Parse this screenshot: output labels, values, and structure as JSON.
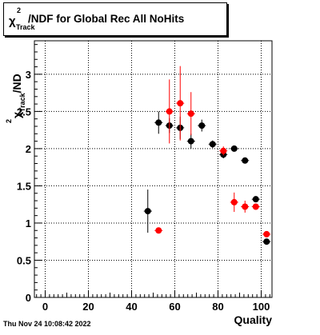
{
  "title": {
    "symbol": "χ",
    "superscript": "2",
    "subscript": "Track",
    "text": "/NDF for Global Rec All NoHits"
  },
  "timestamp": "Thu Nov 24 10:08:42 2022",
  "chart_data": {
    "type": "scatter",
    "xlabel": "Quality",
    "ylabel": {
      "symbol": "χ",
      "superscript": "2",
      "subscript": "Track",
      "suffix": "/ND"
    },
    "xlim": [
      -5,
      105
    ],
    "ylim": [
      0,
      3.45
    ],
    "xticks": [
      0,
      20,
      40,
      60,
      80,
      100
    ],
    "yticks": [
      0,
      0.5,
      1,
      1.5,
      2,
      2.5,
      3
    ],
    "ytick_labels": [
      "0",
      "0.5",
      "1",
      "1.5",
      "2",
      "2.5",
      "3"
    ],
    "xtick_labels": [
      "0",
      "20",
      "40",
      "60",
      "80",
      "100"
    ],
    "grid": true,
    "series": [
      {
        "color": "#000000",
        "points": [
          {
            "x": 47.5,
            "y": 1.16,
            "yerr": 0.29
          },
          {
            "x": 52.5,
            "y": 2.35,
            "yerr": 0.15
          },
          {
            "x": 57.5,
            "y": 2.31,
            "yerr": 0.1
          },
          {
            "x": 62.5,
            "y": 2.28,
            "yerr": 0.15
          },
          {
            "x": 67.5,
            "y": 2.1,
            "yerr": 0.1
          },
          {
            "x": 72.5,
            "y": 2.31,
            "yerr": 0.08
          },
          {
            "x": 77.5,
            "y": 2.06,
            "yerr": 0.05
          },
          {
            "x": 82.5,
            "y": 1.92,
            "yerr": 0.05
          },
          {
            "x": 87.5,
            "y": 2.0,
            "yerr": 0.03
          },
          {
            "x": 92.5,
            "y": 1.84,
            "yerr": 0.02
          },
          {
            "x": 97.5,
            "y": 1.32,
            "yerr": 0.03
          },
          {
            "x": 102.5,
            "y": 0.75,
            "yerr": 0.03
          }
        ]
      },
      {
        "color": "#ff0000",
        "points": [
          {
            "x": 52.5,
            "y": 0.9,
            "yerr": 0.02
          },
          {
            "x": 57.5,
            "y": 2.5,
            "yerr": 0.43
          },
          {
            "x": 62.5,
            "y": 2.61,
            "yerr": 0.5
          },
          {
            "x": 67.5,
            "y": 2.47,
            "yerr": 0.29
          },
          {
            "x": 82.5,
            "y": 1.97,
            "yerr": 0.06
          },
          {
            "x": 87.5,
            "y": 1.28,
            "yerr": 0.13
          },
          {
            "x": 92.5,
            "y": 1.22,
            "yerr": 0.08
          },
          {
            "x": 97.5,
            "y": 1.22,
            "yerr": 0.03
          },
          {
            "x": 102.5,
            "y": 0.85,
            "yerr": 0.03
          }
        ]
      }
    ]
  }
}
